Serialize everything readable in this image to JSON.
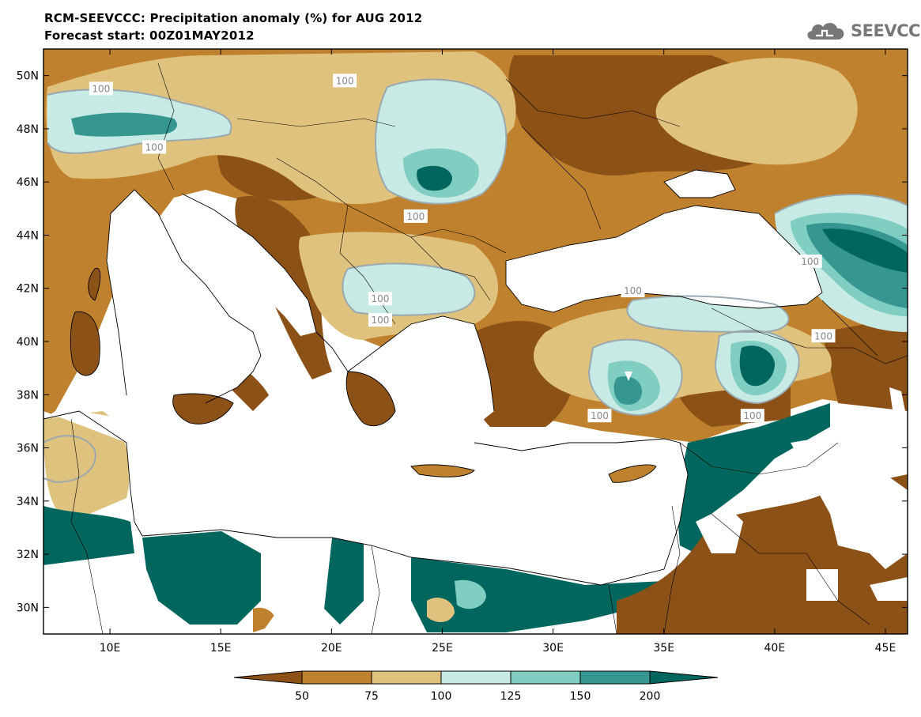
{
  "header": {
    "title": "RCM-SEEVCCC: Precipitation anomaly (%) for AUG 2012",
    "subtitle": "Forecast start: 00Z01MAY2012"
  },
  "logo": {
    "text": "SEEVCCC",
    "icon": "cloud-logo-icon",
    "color": "#777777"
  },
  "map": {
    "lon_range": [
      7,
      46
    ],
    "lat_range": [
      29,
      51
    ],
    "x_ticks": [
      {
        "value": 10,
        "label": "10E"
      },
      {
        "value": 15,
        "label": "15E"
      },
      {
        "value": 20,
        "label": "20E"
      },
      {
        "value": 25,
        "label": "25E"
      },
      {
        "value": 30,
        "label": "30E"
      },
      {
        "value": 35,
        "label": "35E"
      },
      {
        "value": 40,
        "label": "40E"
      },
      {
        "value": 45,
        "label": "45E"
      }
    ],
    "y_ticks": [
      {
        "value": 30,
        "label": "30N"
      },
      {
        "value": 32,
        "label": "32N"
      },
      {
        "value": 34,
        "label": "34N"
      },
      {
        "value": 36,
        "label": "36N"
      },
      {
        "value": 38,
        "label": "38N"
      },
      {
        "value": 40,
        "label": "40N"
      },
      {
        "value": 42,
        "label": "42N"
      },
      {
        "value": 44,
        "label": "44N"
      },
      {
        "value": 46,
        "label": "46N"
      },
      {
        "value": 48,
        "label": "48N"
      },
      {
        "value": 50,
        "label": "50N"
      }
    ],
    "contour_labels": [
      {
        "text": "100",
        "lon": 9.6,
        "lat": 49.5
      },
      {
        "text": "100",
        "lon": 20.6,
        "lat": 49.8
      },
      {
        "text": "100",
        "lon": 12.0,
        "lat": 47.3
      },
      {
        "text": "100",
        "lon": 23.8,
        "lat": 44.7
      },
      {
        "text": "100",
        "lon": 22.2,
        "lat": 41.6
      },
      {
        "text": "100",
        "lon": 22.2,
        "lat": 40.8
      },
      {
        "text": "100",
        "lon": 41.6,
        "lat": 43.0
      },
      {
        "text": "100",
        "lon": 33.6,
        "lat": 41.9
      },
      {
        "text": "100",
        "lon": 42.2,
        "lat": 40.2
      },
      {
        "text": "100",
        "lon": 32.1,
        "lat": 37.2
      },
      {
        "text": "100",
        "lon": 39.0,
        "lat": 37.2
      }
    ]
  },
  "colorbar": {
    "colors": [
      "#8c5116",
      "#bf812d",
      "#dfc27d",
      "#c7eae5",
      "#80cdc1",
      "#35978f",
      "#01665e"
    ],
    "labels": [
      "50",
      "75",
      "100",
      "125",
      "150",
      "200"
    ]
  }
}
